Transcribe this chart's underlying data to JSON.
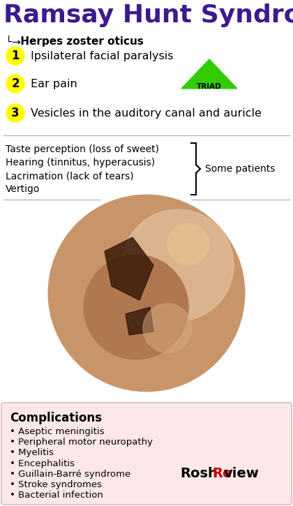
{
  "title": "Ramsay Hunt Syndrome",
  "subtitle_arrow": "└→",
  "subtitle": " Herpes zoster oticus",
  "triad_items": [
    {
      "num": "1",
      "text": "Ipsilateral facial paralysis"
    },
    {
      "num": "2",
      "text": "Ear pain"
    },
    {
      "num": "3",
      "text": "Vesicles in the auditory canal and auricle"
    }
  ],
  "some_patients_items": [
    "Taste perception (loss of sweet)",
    "Hearing (tinnitus, hyperacusis)",
    "Lacrimation (lack of tears)",
    "Vertigo"
  ],
  "some_patients_label": "Some patients",
  "complications_title": "Complications",
  "complications": [
    "Aseptic meningitis",
    "Peripheral motor neuropathy",
    "Myelitis",
    "Encephalitis",
    "Guillain-Barré syndrome",
    "Stroke syndromes",
    "Bacterial infection"
  ],
  "bg_color": "#ffffff",
  "title_color": "#3d1a8c",
  "num_circle_color": "#ffff00",
  "num_text_color": "#000000",
  "triad_color": "#33cc00",
  "triad_text_color": "#000000",
  "item_text_color": "#000000",
  "comp_bg_color": "#fce8e8",
  "comp_border_color": "#ddbbbb",
  "comp_title_color": "#000000",
  "comp_text_color": "#000000",
  "rosh_black": "#000000",
  "rosh_red": "#cc0000",
  "subtitle_color": "#000000",
  "sep_color": "#aaaaaa",
  "ear_outer": "#c8956a",
  "ear_inner": "#b07850",
  "ear_dark1": "#3a1a08",
  "ear_dark2": "#2a1005",
  "ear_light": "#d8aa80",
  "ear_white": "#e8c9a8"
}
